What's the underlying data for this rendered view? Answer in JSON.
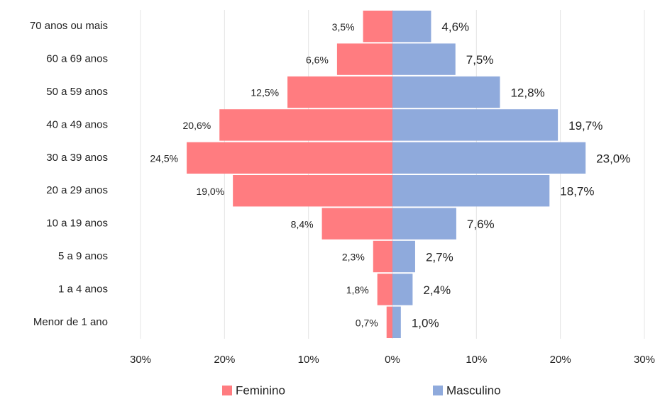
{
  "chart_data": {
    "type": "pyramid",
    "categories": [
      "70 anos ou mais",
      "60 a 69 anos",
      "50 a 59 anos",
      "40 a 49 anos",
      "30 a 39 anos",
      "20 a 29 anos",
      "10 a 19 anos",
      "5 a 9 anos",
      "1 a 4 anos",
      "Menor de 1 ano"
    ],
    "series": [
      {
        "name": "Feminino",
        "color": "#ff7c80",
        "side": "left",
        "values": [
          3.5,
          6.6,
          12.5,
          20.6,
          24.5,
          19.0,
          8.4,
          2.3,
          1.8,
          0.7
        ],
        "value_labels": [
          "3,5%",
          "6,6%",
          "12,5%",
          "20,6%",
          "24,5%",
          "19,0%",
          "8,4%",
          "2,3%",
          "1,8%",
          "0,7%"
        ]
      },
      {
        "name": "Masculino",
        "color": "#8faadc",
        "side": "right",
        "values": [
          4.6,
          7.5,
          12.8,
          19.7,
          23.0,
          18.7,
          7.6,
          2.7,
          2.4,
          1.0
        ],
        "value_labels": [
          "4,6%",
          "7,5%",
          "12,8%",
          "19,7%",
          "23,0%",
          "18,7%",
          "7,6%",
          "2,7%",
          "2,4%",
          "1,0%"
        ]
      }
    ],
    "xlim": [
      0,
      30
    ],
    "xticks": [
      {
        "value": 0,
        "label": "0%"
      },
      {
        "value": 10,
        "label": "10%"
      },
      {
        "value": 20,
        "label": "20%"
      },
      {
        "value": 30,
        "label": "30%"
      }
    ],
    "grid": true
  }
}
